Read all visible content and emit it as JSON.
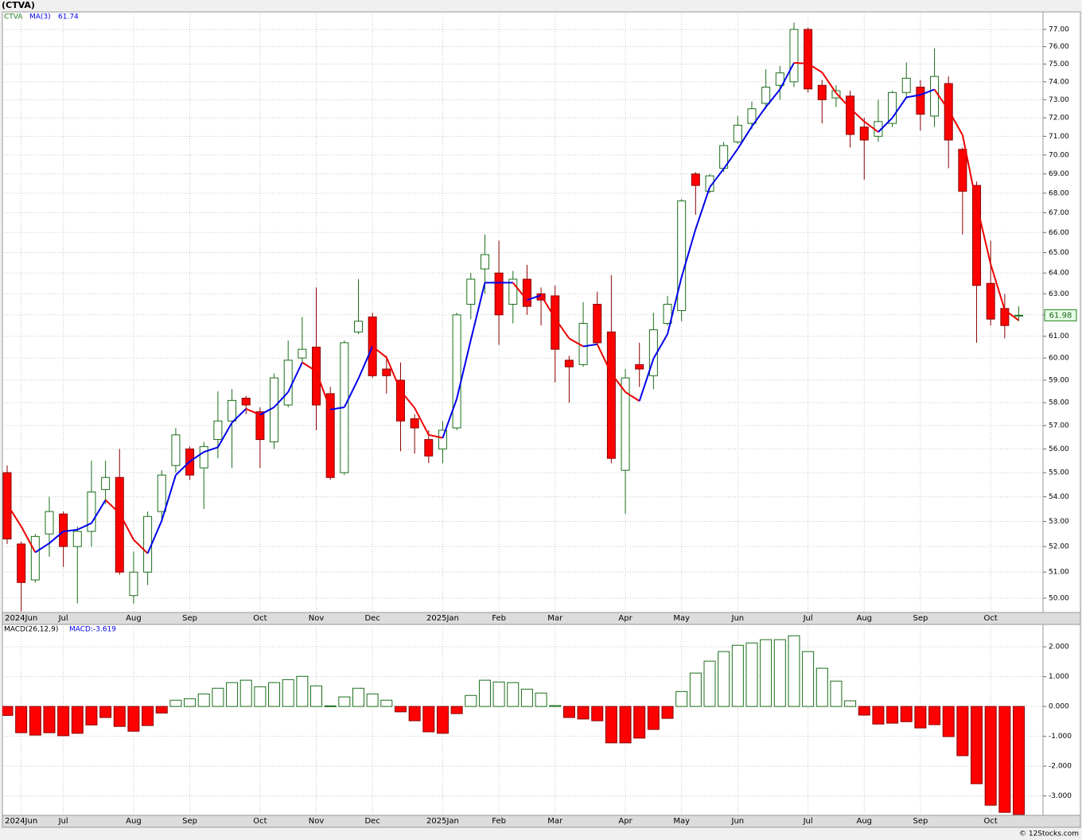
{
  "header": {
    "title": "(CTVA)"
  },
  "footer": "© 12Stocks.com",
  "chart_data": [
    {
      "type": "candlestick",
      "symbol": "CTVA",
      "categories": [
        null,
        "2024Jun",
        null,
        null,
        "Jul",
        null,
        null,
        null,
        null,
        "Aug",
        null,
        null,
        null,
        "Sep",
        null,
        null,
        null,
        null,
        "Oct",
        null,
        null,
        null,
        "Nov",
        null,
        null,
        null,
        "Dec",
        null,
        null,
        null,
        null,
        "2025Jan",
        null,
        null,
        null,
        "Feb",
        null,
        null,
        null,
        "Mar",
        null,
        null,
        null,
        null,
        "Apr",
        null,
        null,
        null,
        "May",
        null,
        null,
        null,
        "Jun",
        null,
        null,
        null,
        null,
        "Jul",
        null,
        null,
        null,
        "Aug",
        null,
        null,
        null,
        "Sep",
        null,
        null,
        null,
        null,
        "Oct",
        null,
        null
      ],
      "open": [
        55.0,
        52.1,
        50.7,
        52.5,
        53.3,
        52.0,
        52.6,
        54.3,
        54.8,
        50.1,
        51.0,
        53.4,
        55.3,
        56.0,
        55.2,
        56.4,
        57.2,
        58.2,
        57.6,
        56.3,
        57.9,
        60.0,
        60.5,
        58.4,
        55.0,
        61.2,
        61.9,
        59.5,
        59.0,
        57.3,
        56.4,
        56.0,
        56.9,
        62.5,
        64.2,
        64.0,
        62.5,
        63.7,
        63.0,
        62.9,
        59.9,
        59.7,
        62.5,
        61.2,
        55.1,
        59.7,
        59.2,
        61.6,
        62.2,
        69.0,
        68.1,
        69.3,
        70.7,
        71.7,
        72.8,
        73.8,
        74.0,
        77.0,
        73.8,
        73.1,
        73.2,
        71.5,
        71.0,
        71.7,
        73.4,
        73.7,
        72.1,
        73.9,
        70.3,
        68.4,
        63.5,
        62.3,
        61.95
      ],
      "high": [
        55.3,
        52.2,
        52.5,
        54.0,
        53.4,
        52.8,
        55.5,
        55.5,
        56.0,
        51.8,
        53.4,
        55.1,
        56.9,
        56.1,
        56.3,
        58.5,
        58.6,
        58.3,
        57.8,
        59.3,
        60.8,
        61.9,
        63.3,
        58.7,
        60.8,
        63.7,
        62.1,
        60.1,
        59.8,
        57.5,
        56.8,
        57.2,
        62.1,
        64.0,
        65.9,
        65.6,
        64.1,
        64.4,
        63.3,
        63.4,
        60.1,
        62.6,
        63.1,
        63.9,
        59.5,
        60.7,
        62.1,
        62.9,
        67.7,
        69.1,
        69.0,
        70.7,
        72.1,
        72.9,
        74.7,
        74.9,
        77.4,
        77.1,
        74.1,
        73.8,
        73.5,
        72.0,
        73.0,
        73.5,
        75.1,
        74.1,
        75.9,
        74.3,
        70.4,
        68.6,
        65.6,
        63.0,
        62.4
      ],
      "low": [
        52.1,
        49.5,
        50.6,
        51.6,
        51.2,
        49.8,
        52.0,
        53.7,
        50.9,
        49.8,
        50.5,
        53.0,
        55.0,
        54.7,
        53.5,
        55.6,
        55.2,
        57.5,
        55.2,
        56.0,
        57.8,
        59.8,
        56.8,
        54.7,
        54.9,
        61.1,
        59.1,
        58.4,
        55.9,
        55.8,
        55.4,
        55.4,
        56.8,
        61.8,
        63.0,
        60.6,
        61.6,
        62.0,
        61.5,
        58.9,
        58.0,
        59.6,
        60.6,
        55.4,
        53.3,
        58.7,
        58.6,
        61.5,
        61.7,
        66.9,
        68.0,
        69.1,
        70.6,
        71.4,
        72.5,
        73.0,
        73.7,
        73.4,
        71.7,
        72.6,
        70.4,
        68.7,
        70.7,
        71.5,
        73.1,
        71.3,
        71.5,
        69.3,
        65.9,
        60.7,
        61.5,
        60.9,
        61.7
      ],
      "close": [
        52.3,
        50.6,
        52.4,
        53.4,
        52.0,
        52.6,
        54.2,
        54.8,
        51.0,
        51.0,
        53.2,
        54.9,
        56.6,
        54.9,
        56.1,
        57.2,
        58.1,
        57.9,
        56.4,
        59.1,
        59.9,
        60.4,
        57.9,
        54.8,
        60.7,
        61.7,
        59.2,
        59.2,
        57.2,
        56.9,
        55.7,
        56.8,
        62.0,
        63.7,
        64.9,
        62.0,
        63.7,
        62.4,
        62.7,
        60.4,
        59.6,
        61.6,
        60.7,
        55.6,
        59.1,
        59.5,
        61.3,
        62.5,
        67.6,
        68.4,
        68.9,
        70.5,
        71.6,
        72.5,
        73.7,
        74.5,
        77.0,
        73.6,
        73.0,
        73.5,
        71.1,
        70.8,
        71.8,
        73.4,
        74.2,
        72.2,
        74.3,
        70.8,
        68.1,
        63.4,
        61.8,
        61.5,
        61.98
      ],
      "last_close_label": "61.98",
      "up_color": "#ffffff",
      "up_edge": "#1b6e1b",
      "down_color": "#ff0000",
      "down_edge": "#8b0000",
      "overlay": {
        "name": "MA(3)",
        "value_label": "61.74",
        "up_color": "#0000ee",
        "down_color": "#ee0000",
        "values": [
          53.7,
          52.8,
          51.77,
          52.13,
          52.6,
          52.67,
          52.93,
          53.87,
          53.33,
          52.27,
          51.73,
          53.03,
          54.9,
          55.47,
          55.87,
          56.07,
          57.13,
          57.73,
          57.47,
          57.8,
          58.47,
          59.8,
          59.4,
          57.7,
          57.8,
          59.07,
          60.53,
          60.03,
          58.53,
          57.77,
          56.6,
          56.47,
          58.17,
          60.83,
          63.53,
          63.53,
          63.53,
          62.7,
          62.93,
          61.83,
          60.9,
          60.53,
          60.63,
          59.3,
          58.47,
          58.07,
          59.97,
          61.1,
          63.8,
          66.17,
          68.3,
          69.27,
          70.33,
          71.53,
          72.6,
          73.57,
          75.07,
          75.03,
          74.53,
          73.37,
          72.53,
          71.8,
          71.23,
          72,
          73.13,
          73.27,
          73.57,
          72.43,
          71.07,
          67.43,
          64.43,
          62.23,
          61.74
        ]
      },
      "ylim": [
        49.46,
        78.03
      ],
      "log_scale": true,
      "grid": true,
      "yticks": [
        {
          "value": 50,
          "label": "50.00"
        },
        {
          "value": 51,
          "label": "51.00"
        },
        {
          "value": 52,
          "label": "52.00"
        },
        {
          "value": 53,
          "label": "53.00"
        },
        {
          "value": 54,
          "label": "54.00"
        },
        {
          "value": 55,
          "label": "55.00"
        },
        {
          "value": 56,
          "label": "56.00"
        },
        {
          "value": 57,
          "label": "57.00"
        },
        {
          "value": 58,
          "label": "58.00"
        },
        {
          "value": 59,
          "label": "59.00"
        },
        {
          "value": 60,
          "label": "60.00"
        },
        {
          "value": 61,
          "label": "61.00"
        },
        {
          "value": 62,
          "label": "62.00"
        },
        {
          "value": 63,
          "label": "63.00"
        },
        {
          "value": 64,
          "label": "64.00"
        },
        {
          "value": 65,
          "label": "65.00"
        },
        {
          "value": 66,
          "label": "66.00"
        },
        {
          "value": 67,
          "label": "67.00"
        },
        {
          "value": 68,
          "label": "68.00"
        },
        {
          "value": 69,
          "label": "69.00"
        },
        {
          "value": 70,
          "label": "70.00"
        },
        {
          "value": 71,
          "label": "71.00"
        },
        {
          "value": 72,
          "label": "72.00"
        },
        {
          "value": 73,
          "label": "73.00"
        },
        {
          "value": 74,
          "label": "74.00"
        },
        {
          "value": 75,
          "label": "75.00"
        },
        {
          "value": 76,
          "label": "76.00"
        },
        {
          "value": 77,
          "label": "77.00"
        }
      ]
    },
    {
      "type": "bar",
      "title": "MACD(26,12,9)",
      "last_label": "MACD:-3.619",
      "categories": [
        null,
        "2024Jun",
        null,
        null,
        "Jul",
        null,
        null,
        null,
        null,
        "Aug",
        null,
        null,
        null,
        "Sep",
        null,
        null,
        null,
        null,
        "Oct",
        null,
        null,
        null,
        "Nov",
        null,
        null,
        null,
        "Dec",
        null,
        null,
        null,
        null,
        "2025Jan",
        null,
        null,
        null,
        "Feb",
        null,
        null,
        null,
        "Mar",
        null,
        null,
        null,
        null,
        "Apr",
        null,
        null,
        null,
        "May",
        null,
        null,
        null,
        "Jun",
        null,
        null,
        null,
        null,
        "Jul",
        null,
        null,
        null,
        "Aug",
        null,
        null,
        null,
        "Sep",
        null,
        null,
        null,
        null,
        "Oct",
        null,
        null
      ],
      "values": [
        -0.3,
        -0.88,
        -0.96,
        -0.88,
        -0.98,
        -0.9,
        -0.62,
        -0.37,
        -0.67,
        -0.83,
        -0.64,
        -0.22,
        0.21,
        0.26,
        0.42,
        0.61,
        0.8,
        0.88,
        0.66,
        0.8,
        0.9,
        1.01,
        0.69,
        0.02,
        0.32,
        0.61,
        0.42,
        0.21,
        -0.18,
        -0.48,
        -0.85,
        -0.9,
        -0.24,
        0.37,
        0.88,
        0.82,
        0.8,
        0.58,
        0.45,
        0.03,
        -0.37,
        -0.42,
        -0.48,
        -1.22,
        -1.22,
        -1.06,
        -0.77,
        -0.4,
        0.5,
        1.12,
        1.52,
        1.84,
        2.05,
        2.13,
        2.24,
        2.24,
        2.37,
        1.84,
        1.28,
        0.85,
        0.19,
        -0.29,
        -0.59,
        -0.56,
        -0.51,
        -0.72,
        -0.61,
        -1.01,
        -1.65,
        -2.59,
        -3.31,
        -3.55,
        -3.619
      ],
      "pos_color": "#ffffff",
      "pos_edge": "#1b6e1b",
      "neg_color": "#ff0000",
      "neg_edge": "#8b0000",
      "ylim": [
        -3.65,
        2.75
      ],
      "grid": true,
      "yticks": [
        {
          "value": 2,
          "label": "2.000"
        },
        {
          "value": 1,
          "label": "1.000"
        },
        {
          "value": 0,
          "label": "0.000"
        },
        {
          "value": -1,
          "label": "-1.000"
        },
        {
          "value": -2,
          "label": "-2.000"
        },
        {
          "value": -3,
          "label": "-3.000"
        }
      ]
    }
  ]
}
